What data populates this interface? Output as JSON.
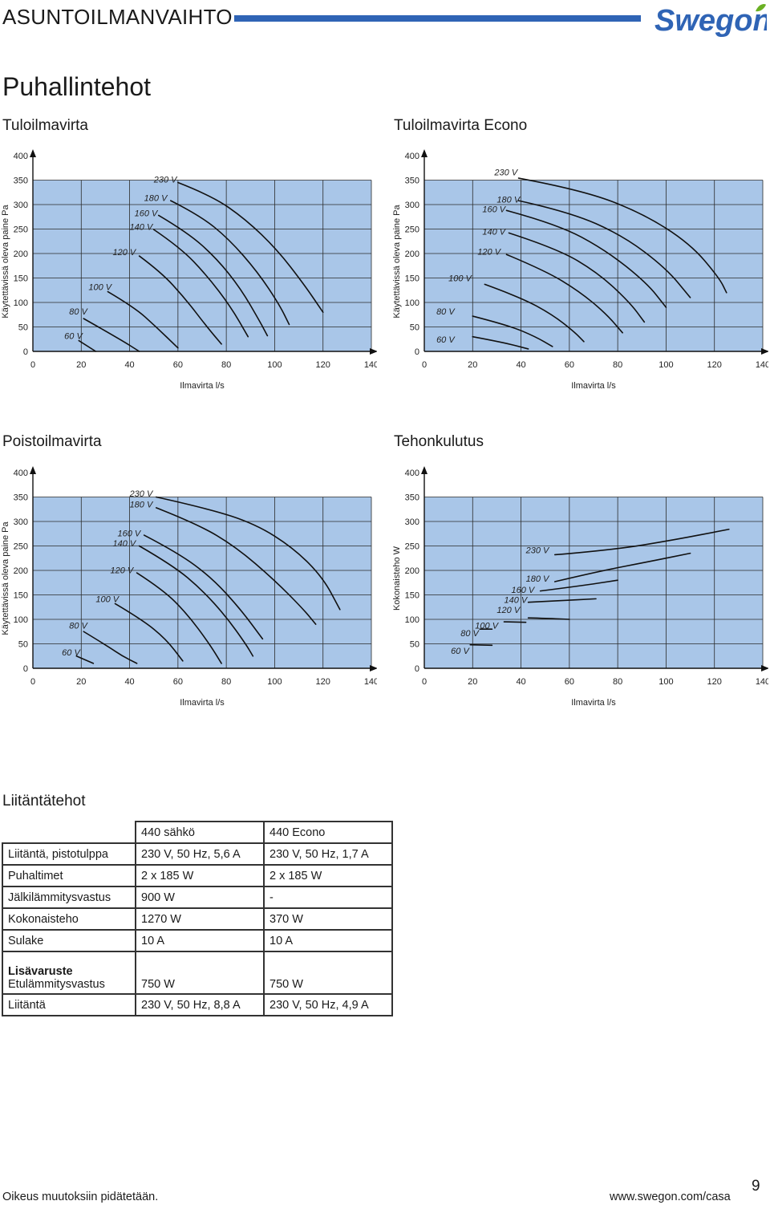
{
  "header": {
    "title": "ASUNTOILMANVAIHTO",
    "brand": "Swegon",
    "brand_color": "#2f64b5",
    "accent_color": "#6ab023"
  },
  "page_title": "Puhallintehot",
  "sections": {
    "supply": "Tuloilmavirta",
    "supply_econo": "Tuloilmavirta Econo",
    "exhaust": "Poistoilmavirta",
    "power": "Tehonkulutus",
    "connection": "Liitäntätehot"
  },
  "chart_data": [
    {
      "type": "line",
      "xlabel": "Ilmavirta l/s",
      "ylabel": "Käytettävissä oleva paine Pa",
      "xlim": [
        0,
        140
      ],
      "ylim": [
        0,
        400
      ],
      "x_ticks": [
        "0",
        "20",
        "40",
        "60",
        "80",
        "100",
        "120",
        "140"
      ],
      "y_ticks": [
        "0",
        "50",
        "100",
        "150",
        "200",
        "250",
        "300",
        "350",
        "400"
      ],
      "grid": true,
      "background": "#a9c6e8",
      "series": [
        {
          "name": "60 V",
          "label_at": [
            13,
            32
          ],
          "points": [
            [
              19,
              22
            ],
            [
              26,
              0
            ]
          ]
        },
        {
          "name": "80 V",
          "label_at": [
            15,
            82
          ],
          "points": [
            [
              21,
              67
            ],
            [
              36,
              25
            ],
            [
              44,
              0
            ]
          ]
        },
        {
          "name": "100 V",
          "label_at": [
            23,
            132
          ],
          "points": [
            [
              31,
              122
            ],
            [
              42,
              90
            ],
            [
              51,
              50
            ],
            [
              60,
              7
            ]
          ]
        },
        {
          "name": "120 V",
          "label_at": [
            33,
            203
          ],
          "points": [
            [
              44,
              195
            ],
            [
              53,
              162
            ],
            [
              63,
              108
            ],
            [
              72,
              50
            ],
            [
              78,
              15
            ]
          ]
        },
        {
          "name": "140 V",
          "label_at": [
            40,
            255
          ],
          "points": [
            [
              50,
              249
            ],
            [
              61,
              212
            ],
            [
              72,
              155
            ],
            [
              82,
              90
            ],
            [
              89,
              30
            ]
          ]
        },
        {
          "name": "160 V",
          "label_at": [
            42,
            283
          ],
          "points": [
            [
              52,
              278
            ],
            [
              64,
              243
            ],
            [
              76,
              190
            ],
            [
              86,
              128
            ],
            [
              94,
              60
            ],
            [
              97,
              32
            ]
          ]
        },
        {
          "name": "180 V",
          "label_at": [
            46,
            314
          ],
          "points": [
            [
              57,
              308
            ],
            [
              69,
              278
            ],
            [
              81,
              230
            ],
            [
              93,
              162
            ],
            [
              102,
              95
            ],
            [
              106,
              55
            ]
          ]
        },
        {
          "name": "230 V",
          "label_at": [
            50,
            352
          ],
          "points": [
            [
              60,
              345
            ],
            [
              74,
              318
            ],
            [
              88,
              270
            ],
            [
              101,
              208
            ],
            [
              112,
              138
            ],
            [
              120,
              80
            ]
          ]
        }
      ]
    },
    {
      "type": "line",
      "xlabel": "Ilmavirta l/s",
      "ylabel": "Käytettävissä oleva paine Pa",
      "xlim": [
        0,
        140
      ],
      "ylim": [
        0,
        400
      ],
      "x_ticks": [
        "0",
        "20",
        "40",
        "60",
        "80",
        "100",
        "120",
        "140"
      ],
      "y_ticks": [
        "0",
        "50",
        "100",
        "150",
        "200",
        "250",
        "300",
        "350",
        "400"
      ],
      "grid": true,
      "background": "#a9c6e8",
      "series": [
        {
          "name": "60 V",
          "label_at": [
            5,
            25
          ],
          "points": [
            [
              20,
              30
            ],
            [
              33,
              18
            ],
            [
              43,
              5
            ]
          ]
        },
        {
          "name": "80 V",
          "label_at": [
            5,
            82
          ],
          "points": [
            [
              20,
              72
            ],
            [
              35,
              53
            ],
            [
              46,
              30
            ],
            [
              53,
              10
            ]
          ]
        },
        {
          "name": "100 V",
          "label_at": [
            10,
            150
          ],
          "points": [
            [
              25,
              137
            ],
            [
              40,
              110
            ],
            [
              53,
              75
            ],
            [
              62,
              40
            ],
            [
              66,
              20
            ]
          ]
        },
        {
          "name": "120 V",
          "label_at": [
            22,
            204
          ],
          "points": [
            [
              34,
              198
            ],
            [
              50,
              165
            ],
            [
              64,
              123
            ],
            [
              75,
              78
            ],
            [
              82,
              38
            ]
          ]
        },
        {
          "name": "140 V",
          "label_at": [
            24,
            245
          ],
          "points": [
            [
              35,
              242
            ],
            [
              55,
              210
            ],
            [
              72,
              160
            ],
            [
              85,
              100
            ],
            [
              91,
              60
            ]
          ]
        },
        {
          "name": "160 V",
          "label_at": [
            24,
            291
          ],
          "points": [
            [
              34,
              288
            ],
            [
              55,
              260
            ],
            [
              75,
              207
            ],
            [
              92,
              140
            ],
            [
              100,
              90
            ]
          ]
        },
        {
          "name": "180 V",
          "label_at": [
            30,
            311
          ],
          "points": [
            [
              39,
              308
            ],
            [
              60,
              285
            ],
            [
              82,
              237
            ],
            [
              100,
              170
            ],
            [
              110,
              110
            ]
          ]
        },
        {
          "name": "230 V",
          "label_at": [
            29,
            366
          ],
          "points": [
            [
              39,
              354
            ],
            [
              65,
              330
            ],
            [
              90,
              283
            ],
            [
              110,
              220
            ],
            [
              122,
              150
            ],
            [
              125,
              120
            ]
          ]
        }
      ]
    },
    {
      "type": "line",
      "xlabel": "Ilmavirta l/s",
      "ylabel": "Käytettävissä oleva paine Pa",
      "xlim": [
        0,
        140
      ],
      "ylim": [
        0,
        400
      ],
      "x_ticks": [
        "0",
        "20",
        "40",
        "60",
        "80",
        "100",
        "120",
        "140"
      ],
      "y_ticks": [
        "0",
        "50",
        "100",
        "150",
        "200",
        "250",
        "300",
        "350",
        "400"
      ],
      "grid": true,
      "background": "#a9c6e8",
      "series": [
        {
          "name": "60 V",
          "label_at": [
            12,
            33
          ],
          "points": [
            [
              18,
              25
            ],
            [
              25,
              10
            ]
          ]
        },
        {
          "name": "80 V",
          "label_at": [
            15,
            88
          ],
          "points": [
            [
              21,
              75
            ],
            [
              31,
              45
            ],
            [
              37,
              25
            ],
            [
              43,
              10
            ]
          ]
        },
        {
          "name": "100 V",
          "label_at": [
            26,
            142
          ],
          "points": [
            [
              34,
              132
            ],
            [
              45,
              100
            ],
            [
              55,
              60
            ],
            [
              62,
              15
            ]
          ]
        },
        {
          "name": "120 V",
          "label_at": [
            32,
            201
          ],
          "points": [
            [
              43,
              195
            ],
            [
              54,
              160
            ],
            [
              64,
              110
            ],
            [
              73,
              50
            ],
            [
              78,
              10
            ]
          ]
        },
        {
          "name": "140 V",
          "label_at": [
            33,
            256
          ],
          "points": [
            [
              44,
              250
            ],
            [
              58,
              210
            ],
            [
              70,
              160
            ],
            [
              80,
              105
            ],
            [
              88,
              50
            ],
            [
              91,
              25
            ]
          ]
        },
        {
          "name": "160 V",
          "label_at": [
            35,
            276
          ],
          "points": [
            [
              46,
              272
            ],
            [
              60,
              236
            ],
            [
              74,
              185
            ],
            [
              86,
              120
            ],
            [
              95,
              60
            ]
          ]
        },
        {
          "name": "180 V",
          "label_at": [
            40,
            335
          ],
          "points": [
            [
              51,
              328
            ],
            [
              68,
              295
            ],
            [
              84,
              248
            ],
            [
              100,
              180
            ],
            [
              112,
              120
            ],
            [
              117,
              90
            ]
          ]
        },
        {
          "name": "230 V",
          "label_at": [
            40,
            357
          ],
          "points": [
            [
              51,
              350
            ],
            [
              72,
              327
            ],
            [
              92,
              295
            ],
            [
              108,
              245
            ],
            [
              120,
              185
            ],
            [
              127,
              120
            ]
          ]
        }
      ]
    },
    {
      "type": "line",
      "xlabel": "Ilmavirta l/s",
      "ylabel": "Kokonaisteho W",
      "xlim": [
        0,
        140
      ],
      "ylim": [
        0,
        400
      ],
      "x_ticks": [
        "0",
        "20",
        "40",
        "60",
        "80",
        "100",
        "120",
        "140"
      ],
      "y_ticks": [
        "0",
        "50",
        "100",
        "150",
        "200",
        "250",
        "300",
        "350",
        "400"
      ],
      "grid": true,
      "background": "#a9c6e8",
      "series": [
        {
          "name": "60 V",
          "label_at": [
            11,
            36
          ],
          "points": [
            [
              19,
              48
            ],
            [
              28,
              47
            ]
          ]
        },
        {
          "name": "80 V",
          "label_at": [
            15,
            72
          ],
          "points": [
            [
              23,
              80
            ],
            [
              28,
              80
            ]
          ]
        },
        {
          "name": "100 V",
          "label_at": [
            21,
            88
          ],
          "points": [
            [
              33,
              95
            ],
            [
              42,
              94
            ]
          ]
        },
        {
          "name": "120 V",
          "label_at": [
            30,
            120
          ],
          "points": [
            [
              43,
              103
            ],
            [
              51,
              102
            ],
            [
              60,
              100
            ]
          ]
        },
        {
          "name": "140 V",
          "label_at": [
            33,
            140
          ],
          "points": [
            [
              43,
              135
            ],
            [
              56,
              138
            ],
            [
              71,
              142
            ]
          ]
        },
        {
          "name": "160 V",
          "label_at": [
            36,
            161
          ],
          "points": [
            [
              48,
              158
            ],
            [
              64,
              168
            ],
            [
              80,
              180
            ]
          ]
        },
        {
          "name": "180 V",
          "label_at": [
            42,
            184
          ],
          "points": [
            [
              54,
              177
            ],
            [
              72,
              198
            ],
            [
              93,
              218
            ],
            [
              110,
              235
            ]
          ]
        },
        {
          "name": "230 V",
          "label_at": [
            42,
            242
          ],
          "points": [
            [
              54,
              232
            ],
            [
              78,
              242
            ],
            [
              103,
              262
            ],
            [
              126,
              284
            ]
          ]
        }
      ]
    }
  ],
  "table": {
    "headers": [
      "",
      "440 sähkö",
      "440 Econo"
    ],
    "rows": [
      {
        "label": "Liitäntä, pistotulppa",
        "a": "230 V, 50 Hz, 5,6 A",
        "b": "230 V, 50 Hz, 1,7 A"
      },
      {
        "label": "Puhaltimet",
        "a": "2 x 185 W",
        "b": "2 x 185 W"
      },
      {
        "label": "Jälkilämmitysvastus",
        "a": "900 W",
        "b": "-"
      },
      {
        "label": "Kokonaisteho",
        "a": "1270 W",
        "b": "370 W"
      },
      {
        "label": "Sulake",
        "a": "10 A",
        "b": "10 A"
      }
    ],
    "accessory": {
      "heading": "Lisävaruste",
      "label": "Etulämmitysvastus",
      "a": "750 W",
      "b": "750 W"
    },
    "last_row": {
      "label": "Liitäntä",
      "a": "230 V, 50 Hz, 8,8 A",
      "b": "230 V, 50 Hz, 4,9 A"
    }
  },
  "footer": {
    "left": "Oikeus muutoksiin pidätetään.",
    "right": "www.swegon.com/casa",
    "page_number": "9"
  }
}
